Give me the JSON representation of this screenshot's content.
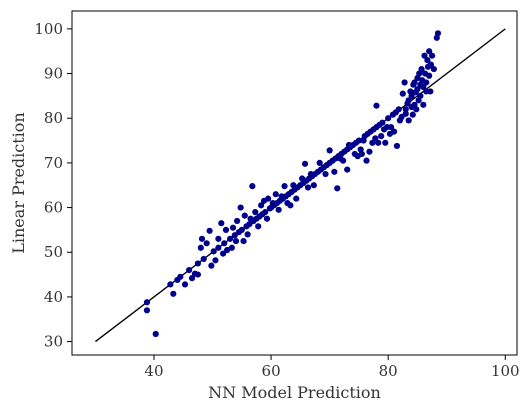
{
  "chart_data": {
    "type": "scatter",
    "title": "",
    "xlabel": "NN Model Prediction",
    "ylabel": "Linear Prediction",
    "xlim": [
      26,
      102
    ],
    "ylim": [
      27,
      104
    ],
    "xticks": [
      40,
      60,
      80,
      100
    ],
    "yticks": [
      30,
      40,
      50,
      60,
      70,
      80,
      90,
      100
    ],
    "xtick_labels": [
      "40",
      "60",
      "80",
      "100"
    ],
    "ytick_labels": [
      "30",
      "40",
      "50",
      "60",
      "70",
      "80",
      "90",
      "100"
    ],
    "grid": false,
    "reference_line": {
      "x": [
        30,
        100
      ],
      "y": [
        30,
        100
      ]
    },
    "colors": {
      "points": "#00008b",
      "line": "#000000",
      "axes": "#000000",
      "text": "#333333"
    },
    "series": [
      {
        "points": [
          [
            38.8,
            38.8
          ],
          [
            38.8,
            37.0
          ],
          [
            40.3,
            31.7
          ],
          [
            42.8,
            42.8
          ],
          [
            43.3,
            40.7
          ],
          [
            44.0,
            43.8
          ],
          [
            44.5,
            44.5
          ],
          [
            45.3,
            42.8
          ],
          [
            46.0,
            46.0
          ],
          [
            46.5,
            44.2
          ],
          [
            47.0,
            45.2
          ],
          [
            47.5,
            47.5
          ],
          [
            47.5,
            45.0
          ],
          [
            48.0,
            51.0
          ],
          [
            48.2,
            53.0
          ],
          [
            48.5,
            48.5
          ],
          [
            49.0,
            52.0
          ],
          [
            49.5,
            54.8
          ],
          [
            49.8,
            47.0
          ],
          [
            50.2,
            50.2
          ],
          [
            50.5,
            48.2
          ],
          [
            51.0,
            51.0
          ],
          [
            51.0,
            53.0
          ],
          [
            51.5,
            56.5
          ],
          [
            51.8,
            49.7
          ],
          [
            52.0,
            52.0
          ],
          [
            52.3,
            55.0
          ],
          [
            52.5,
            50.5
          ],
          [
            53.0,
            53.0
          ],
          [
            53.3,
            51.0
          ],
          [
            53.5,
            55.5
          ],
          [
            53.8,
            53.8
          ],
          [
            54.0,
            52.5
          ],
          [
            54.2,
            57.0
          ],
          [
            54.5,
            54.5
          ],
          [
            54.8,
            60.0
          ],
          [
            55.0,
            55.0
          ],
          [
            55.3,
            52.5
          ],
          [
            55.5,
            58.2
          ],
          [
            55.8,
            55.8
          ],
          [
            56.0,
            54.0
          ],
          [
            56.3,
            56.3
          ],
          [
            56.5,
            57.5
          ],
          [
            56.8,
            64.8
          ],
          [
            57.0,
            57.0
          ],
          [
            57.3,
            59.0
          ],
          [
            57.5,
            57.5
          ],
          [
            57.8,
            55.8
          ],
          [
            58.0,
            58.0
          ],
          [
            58.3,
            60.5
          ],
          [
            58.5,
            58.5
          ],
          [
            58.8,
            61.5
          ],
          [
            59.0,
            59.0
          ],
          [
            59.3,
            57.5
          ],
          [
            59.5,
            62.0
          ],
          [
            59.8,
            59.8
          ],
          [
            60.0,
            60.0
          ],
          [
            60.3,
            61.0
          ],
          [
            60.5,
            60.5
          ],
          [
            60.8,
            63.0
          ],
          [
            61.0,
            61.0
          ],
          [
            61.3,
            59.5
          ],
          [
            61.5,
            61.5
          ],
          [
            61.8,
            62.5
          ],
          [
            62.0,
            62.0
          ],
          [
            62.3,
            64.8
          ],
          [
            62.5,
            62.5
          ],
          [
            62.8,
            61.0
          ],
          [
            63.0,
            63.0
          ],
          [
            63.3,
            60.5
          ],
          [
            63.5,
            63.5
          ],
          [
            63.8,
            65.0
          ],
          [
            64.0,
            64.0
          ],
          [
            64.3,
            62.0
          ],
          [
            64.5,
            64.5
          ],
          [
            65.0,
            65.0
          ],
          [
            65.3,
            66.5
          ],
          [
            65.5,
            65.5
          ],
          [
            65.8,
            69.8
          ],
          [
            66.0,
            66.0
          ],
          [
            66.3,
            64.5
          ],
          [
            66.5,
            66.5
          ],
          [
            66.8,
            67.5
          ],
          [
            67.0,
            67.0
          ],
          [
            67.3,
            65.0
          ],
          [
            67.5,
            67.5
          ],
          [
            68.0,
            68.0
          ],
          [
            68.3,
            70.0
          ],
          [
            68.5,
            68.5
          ],
          [
            69.0,
            69.0
          ],
          [
            69.3,
            67.5
          ],
          [
            69.5,
            69.5
          ],
          [
            70.0,
            70.0
          ],
          [
            70.0,
            72.8
          ],
          [
            70.5,
            70.5
          ],
          [
            70.8,
            68.0
          ],
          [
            71.0,
            71.0
          ],
          [
            71.3,
            64.3
          ],
          [
            71.5,
            71.5
          ],
          [
            71.8,
            71.0
          ],
          [
            72.0,
            72.0
          ],
          [
            72.3,
            70.5
          ],
          [
            72.5,
            72.5
          ],
          [
            73.0,
            73.0
          ],
          [
            73.0,
            68.5
          ],
          [
            73.3,
            74.0
          ],
          [
            73.5,
            73.5
          ],
          [
            74.0,
            74.0
          ],
          [
            74.3,
            72.0
          ],
          [
            74.5,
            74.5
          ],
          [
            74.8,
            71.5
          ],
          [
            75.0,
            75.0
          ],
          [
            75.3,
            73.0
          ],
          [
            75.5,
            72.0
          ],
          [
            75.8,
            75.0
          ],
          [
            76.0,
            76.0
          ],
          [
            76.3,
            70.5
          ],
          [
            76.5,
            76.5
          ],
          [
            76.8,
            72.5
          ],
          [
            77.0,
            77.0
          ],
          [
            77.3,
            74.5
          ],
          [
            77.5,
            77.5
          ],
          [
            77.8,
            75.5
          ],
          [
            78.0,
            78.0
          ],
          [
            78.0,
            82.8
          ],
          [
            78.3,
            74.5
          ],
          [
            78.5,
            78.5
          ],
          [
            78.8,
            76.0
          ],
          [
            79.0,
            79.0
          ],
          [
            79.3,
            77.5
          ],
          [
            79.5,
            74.5
          ],
          [
            79.8,
            78.0
          ],
          [
            80.0,
            80.0
          ],
          [
            80.3,
            76.5
          ],
          [
            80.5,
            78.0
          ],
          [
            80.8,
            80.8
          ],
          [
            81.0,
            77.0
          ],
          [
            81.3,
            81.3
          ],
          [
            81.5,
            73.8
          ],
          [
            81.8,
            82.0
          ],
          [
            82.0,
            79.5
          ],
          [
            82.3,
            80.3
          ],
          [
            82.5,
            85.5
          ],
          [
            82.8,
            88.0
          ],
          [
            83.0,
            81.0
          ],
          [
            83.0,
            82.0
          ],
          [
            83.3,
            83.3
          ],
          [
            83.5,
            84.0
          ],
          [
            83.5,
            79.5
          ],
          [
            83.8,
            86.0
          ],
          [
            84.0,
            82.5
          ],
          [
            84.0,
            85.0
          ],
          [
            84.2,
            80.8
          ],
          [
            84.3,
            87.5
          ],
          [
            84.5,
            83.0
          ],
          [
            84.5,
            88.0
          ],
          [
            84.7,
            85.8
          ],
          [
            84.8,
            82.0
          ],
          [
            85.0,
            89.0
          ],
          [
            85.0,
            86.5
          ],
          [
            85.2,
            84.0
          ],
          [
            85.3,
            90.0
          ],
          [
            85.5,
            87.5
          ],
          [
            85.5,
            85.0
          ],
          [
            85.7,
            91.0
          ],
          [
            85.8,
            88.5
          ],
          [
            86.0,
            83.0
          ],
          [
            86.0,
            87.0
          ],
          [
            86.2,
            94.0
          ],
          [
            86.3,
            90.0
          ],
          [
            86.5,
            88.0
          ],
          [
            86.5,
            86.0
          ],
          [
            86.7,
            93.0
          ],
          [
            86.8,
            91.5
          ],
          [
            87.0,
            95.0
          ],
          [
            87.0,
            89.5
          ],
          [
            87.2,
            86.0
          ],
          [
            87.3,
            92.0
          ],
          [
            87.5,
            94.0
          ],
          [
            87.8,
            91.0
          ],
          [
            88.3,
            98.0
          ],
          [
            88.5,
            99.0
          ]
        ]
      }
    ]
  }
}
